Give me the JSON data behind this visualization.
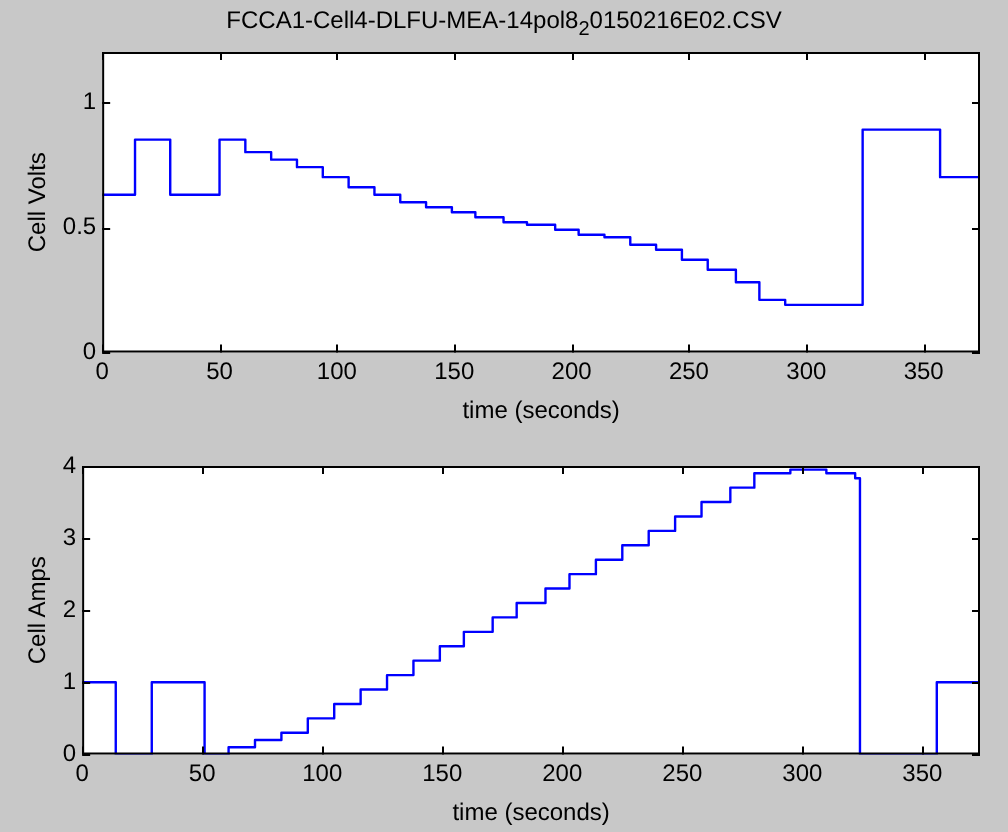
{
  "chart_data": [
    {
      "type": "step",
      "title": "FCCA1-Cell4-DLFU-MEA-14pol8$_{2}$0150216E02.CSV",
      "xlabel": "time (seconds)",
      "ylabel": "Cell Volts",
      "xlim": [
        0,
        374
      ],
      "xticks": [
        0,
        50,
        100,
        150,
        200,
        250,
        300,
        350
      ],
      "ylim": [
        0,
        1.2
      ],
      "yticks": [
        0,
        0.5,
        1
      ],
      "grid": false,
      "legend": false,
      "series": [
        {
          "color": "#0000ff",
          "x": [
            0,
            13,
            14,
            29,
            50,
            61,
            72,
            83,
            94,
            105,
            116,
            127,
            138,
            149,
            159,
            171,
            181,
            193,
            203,
            214,
            225,
            236,
            247,
            258,
            270,
            280,
            291,
            324,
            357,
            374
          ],
          "values": [
            0.63,
            0.63,
            0.85,
            0.63,
            0.85,
            0.8,
            0.77,
            0.74,
            0.7,
            0.66,
            0.63,
            0.6,
            0.58,
            0.56,
            0.54,
            0.52,
            0.51,
            0.49,
            0.47,
            0.46,
            0.43,
            0.41,
            0.37,
            0.33,
            0.28,
            0.21,
            0.19,
            0.89,
            0.7,
            0.7
          ]
        }
      ]
    },
    {
      "type": "step",
      "xlabel": "time (seconds)",
      "ylabel": "Cell Amps",
      "xlim": [
        0,
        374
      ],
      "xticks": [
        0,
        50,
        100,
        150,
        200,
        250,
        300,
        350
      ],
      "ylim": [
        0,
        4
      ],
      "yticks": [
        0,
        1,
        2,
        3,
        4
      ],
      "grid": false,
      "legend": false,
      "series": [
        {
          "color": "#0000ff",
          "x": [
            0,
            14,
            29,
            51,
            61,
            72,
            83,
            94,
            105,
            116,
            127,
            138,
            149,
            159,
            171,
            181,
            193,
            203,
            214,
            225,
            236,
            247,
            258,
            270,
            280,
            295,
            310,
            322,
            324,
            356,
            374
          ],
          "values": [
            1.0,
            0,
            1.0,
            0,
            0.1,
            0.2,
            0.3,
            0.5,
            0.7,
            0.9,
            1.1,
            1.3,
            1.5,
            1.7,
            1.9,
            2.1,
            2.3,
            2.5,
            2.7,
            2.9,
            3.1,
            3.3,
            3.5,
            3.7,
            3.9,
            3.95,
            3.9,
            3.83,
            0,
            1.0,
            1.0
          ]
        }
      ]
    }
  ]
}
